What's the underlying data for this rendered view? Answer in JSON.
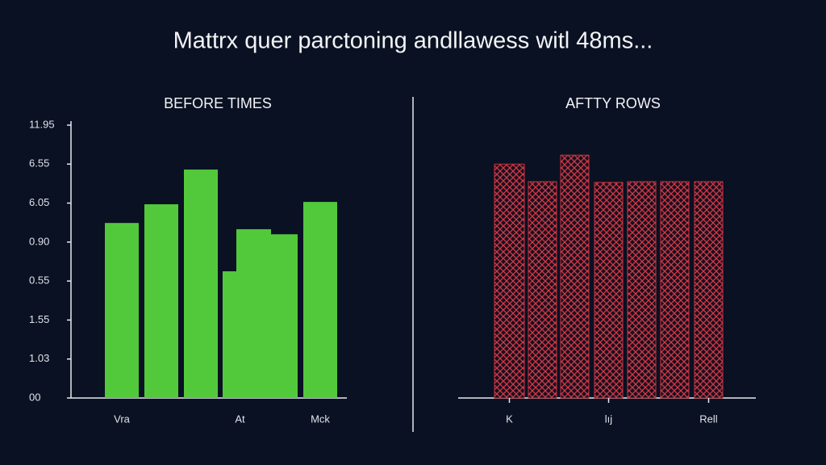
{
  "title": "Mattrx quer parctoning andllawess witl 48ms...",
  "chart_data": [
    {
      "type": "bar",
      "title": "BEFORE TIMES",
      "color": "#52c93b",
      "categories": [
        "Vra",
        null,
        null,
        "At",
        null,
        null,
        "Mck"
      ],
      "values": [
        4.49,
        4.97,
        5.86,
        3.25,
        4.33,
        4.2,
        5.03
      ],
      "ylim": [
        0,
        7
      ],
      "yticks": [
        {
          "value": 0,
          "label": "00"
        },
        {
          "value": 1,
          "label": "1.03"
        },
        {
          "value": 2,
          "label": "1.55"
        },
        {
          "value": 3,
          "label": "0.55"
        },
        {
          "value": 4,
          "label": "0.90"
        },
        {
          "value": 5,
          "label": "6.05"
        },
        {
          "value": 6,
          "label": "6.55"
        },
        {
          "value": 7,
          "label": "11.95"
        }
      ]
    },
    {
      "type": "bar",
      "title": "AFTTY ROWS",
      "color": "#c8323f",
      "categories": [
        "K",
        null,
        null,
        "lıj",
        null,
        null,
        "Rell"
      ],
      "values": [
        6.0,
        5.55,
        6.23,
        5.53,
        5.55,
        5.55,
        5.55
      ],
      "ylim": [
        0,
        7
      ]
    }
  ]
}
